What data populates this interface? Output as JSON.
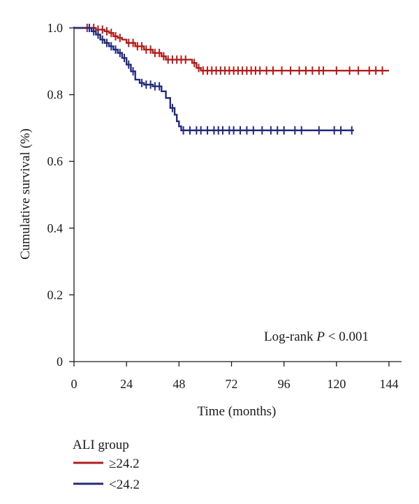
{
  "chart_data": {
    "type": "line",
    "subtype": "kaplan-meier",
    "xlabel": "Time (months)",
    "ylabel": "Cumulative survival (%)",
    "xlim": [
      0,
      144
    ],
    "ylim": [
      0,
      1.0
    ],
    "x_ticks": [
      0,
      24,
      48,
      72,
      96,
      120,
      144
    ],
    "y_ticks": [
      0,
      0.2,
      0.4,
      0.6,
      0.8,
      1.0
    ],
    "y_tick_labels": [
      "0",
      "0.2",
      "0.4",
      "0.6",
      "0.8",
      "1.0"
    ],
    "grid": false,
    "annotation_prefix": "Log-rank ",
    "annotation_p": "P",
    "annotation_suffix": " < 0.001",
    "legend": {
      "title": "ALI group",
      "placement": "bottom-left"
    },
    "series": [
      {
        "name": "≥24.2",
        "color": "#b01c1c",
        "steps": [
          [
            0,
            1.0
          ],
          [
            8,
            1.0
          ],
          [
            10,
            0.995
          ],
          [
            14,
            0.99
          ],
          [
            16,
            0.985
          ],
          [
            18,
            0.975
          ],
          [
            20,
            0.97
          ],
          [
            22,
            0.965
          ],
          [
            24,
            0.955
          ],
          [
            28,
            0.945
          ],
          [
            32,
            0.935
          ],
          [
            36,
            0.925
          ],
          [
            40,
            0.915
          ],
          [
            42,
            0.905
          ],
          [
            52,
            0.905
          ],
          [
            54,
            0.895
          ],
          [
            56,
            0.88
          ],
          [
            58,
            0.872
          ],
          [
            72,
            0.872
          ],
          [
            144,
            0.872
          ]
        ],
        "censor_x": [
          6,
          9,
          11,
          13,
          15,
          17,
          19,
          21,
          25,
          27,
          29,
          31,
          33,
          35,
          37,
          39,
          41,
          43,
          45,
          47,
          49,
          51,
          55,
          57,
          59,
          61,
          63,
          65,
          67,
          69,
          71,
          73,
          75,
          77,
          79,
          81,
          83,
          85,
          88,
          91,
          95,
          99,
          103,
          106,
          109,
          112,
          114,
          120,
          126,
          130,
          135,
          138,
          141
        ]
      },
      {
        "name": "<24.2",
        "color": "#232b7a",
        "steps": [
          [
            0,
            1.0
          ],
          [
            6,
            1.0
          ],
          [
            8,
            0.99
          ],
          [
            10,
            0.98
          ],
          [
            12,
            0.965
          ],
          [
            14,
            0.955
          ],
          [
            16,
            0.945
          ],
          [
            18,
            0.935
          ],
          [
            20,
            0.925
          ],
          [
            22,
            0.91
          ],
          [
            24,
            0.89
          ],
          [
            26,
            0.87
          ],
          [
            28,
            0.845
          ],
          [
            30,
            0.835
          ],
          [
            32,
            0.83
          ],
          [
            36,
            0.825
          ],
          [
            40,
            0.81
          ],
          [
            42,
            0.79
          ],
          [
            44,
            0.76
          ],
          [
            46,
            0.74
          ],
          [
            47,
            0.72
          ],
          [
            48,
            0.705
          ],
          [
            49,
            0.693
          ],
          [
            60,
            0.693
          ],
          [
            128,
            0.693
          ]
        ],
        "censor_x": [
          7,
          9,
          11,
          13,
          15,
          17,
          19,
          21,
          23,
          25,
          27,
          31,
          33,
          35,
          37,
          39,
          45,
          50,
          53,
          56,
          58,
          61,
          64,
          66,
          68,
          71,
          73,
          76,
          79,
          82,
          86,
          90,
          93,
          96,
          101,
          104,
          112,
          119,
          122,
          127
        ]
      }
    ]
  }
}
